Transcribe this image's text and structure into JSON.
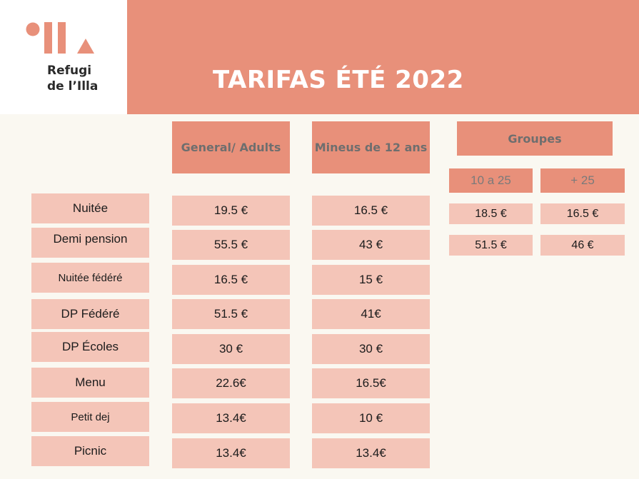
{
  "brand": {
    "name": "Refugi\nde l’Illa",
    "color": "#e8907a"
  },
  "title": "TARIFAS ÉTÉ 2022",
  "columns": {
    "adults": "General/ Adults",
    "minors": "Mineus de 12 ans",
    "groups": "Groupes",
    "group_sub": [
      "10 a 25",
      "+ 25"
    ]
  },
  "rows": [
    {
      "label": "Nuitée",
      "adults": "19.5 €",
      "minors": "16.5 €"
    },
    {
      "label": "Demi pension",
      "adults": "55.5 €",
      "minors": "43 €"
    },
    {
      "label": "Nuitée fédéré",
      "adults": "16.5 €",
      "minors": "15 €"
    },
    {
      "label": "DP Fédéré",
      "adults": "51.5 €",
      "minors": "41€"
    },
    {
      "label": "DP Écoles",
      "adults": "30 €",
      "minors": "30 €"
    },
    {
      "label": "Menu",
      "adults": "22.6€",
      "minors": "16.5€"
    },
    {
      "label": "Petit dej",
      "adults": "13.4€",
      "minors": "10 €"
    },
    {
      "label": "Picnic",
      "adults": "13.4€",
      "minors": "13.4€"
    }
  ],
  "groups_rows": [
    [
      "18.5 €",
      "16.5 €"
    ],
    [
      "51.5 €",
      "46 €"
    ]
  ]
}
